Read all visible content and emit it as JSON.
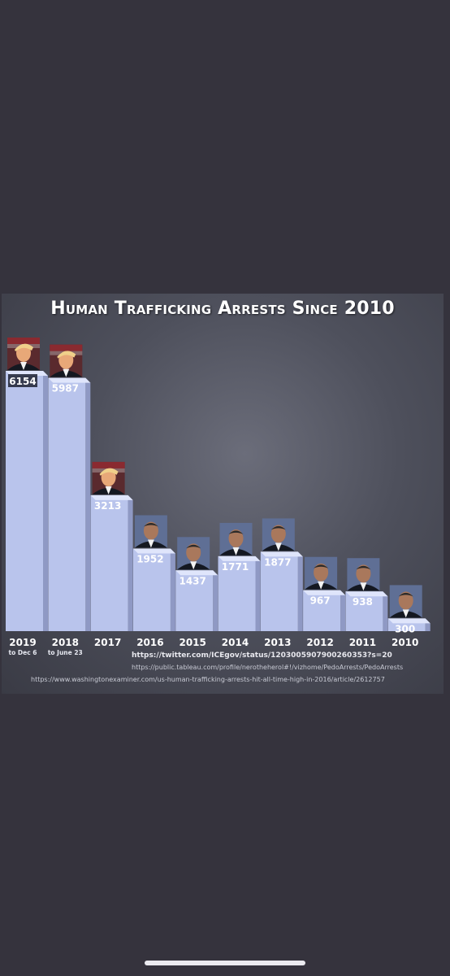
{
  "chart_data": {
    "type": "bar",
    "title": "Human Trafficking Arrests Since 2010",
    "categories": [
      "2019",
      "2018",
      "2017",
      "2016",
      "2015",
      "2014",
      "2013",
      "2012",
      "2011",
      "2010"
    ],
    "category_notes": [
      "to Dec 6",
      "to June 23",
      "",
      "",
      "",
      "",
      "",
      "",
      "",
      ""
    ],
    "values": [
      6154,
      5987,
      3213,
      1952,
      1437,
      1771,
      1877,
      967,
      938,
      300
    ],
    "value_labels": [
      "6154",
      "5987",
      "3213",
      "1952",
      "1437",
      "1771",
      "1877",
      "967",
      "938",
      "300"
    ],
    "bar_portraits": [
      "trump",
      "trump",
      "trump",
      "obama",
      "obama",
      "obama",
      "obama",
      "obama",
      "obama",
      "obama"
    ],
    "xlabel": "",
    "ylabel": "",
    "ylim": [
      0,
      6154
    ],
    "grid": false,
    "legend": "none",
    "colors": {
      "bar": "#b9c4ec",
      "bar_side": "#8f99c4",
      "bar_top": "#dfe5fb",
      "label": "#ffffff"
    }
  },
  "sources": [
    "https://twitter.com/ICEgov/status/1203005907900260353?s=20",
    "https://public.tableau.com/profile/nerotheherol#!/vizhome/PedoArrests/PedoArrests",
    "https://www.washingtonexaminer.com/us-human-trafficking-arrests-hit-all-time-high-in-2016/article/2612757"
  ]
}
